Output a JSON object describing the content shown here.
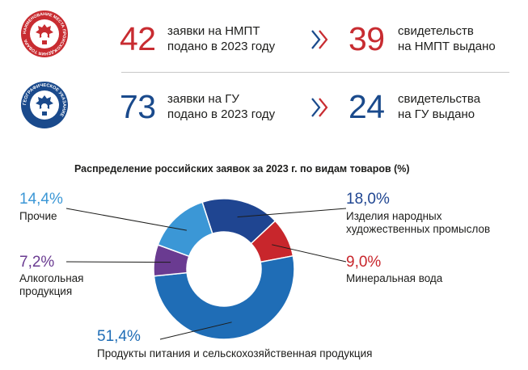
{
  "rows": [
    {
      "emblem": {
        "name": "nmpt-emblem",
        "ring_text": "НАИМЕНОВАНИЕ МЕСТА ПРОИСХОЖДЕНИЯ ТОВАРА",
        "color": "#c82c31"
      },
      "applications_value": "42",
      "applications_text": [
        "заявки на НМПТ",
        "подано в 2023 году"
      ],
      "certificates_value": "39",
      "certificates_text": [
        "свидетельств",
        "на НМПТ выдано"
      ],
      "value_color": "#c82c31"
    },
    {
      "emblem": {
        "name": "gu-emblem",
        "ring_text": "ГЕОГРАФИЧЕСКОЕ УКАЗАНИЕ",
        "color": "#1a4a8c"
      },
      "applications_value": "73",
      "applications_text": [
        "заявки на ГУ",
        "подано в 2023 году"
      ],
      "certificates_value": "24",
      "certificates_text": [
        "свидетельства",
        "на ГУ выдано"
      ],
      "value_color": "#1a4a8c"
    }
  ],
  "arrow_icon": "double-chevron-right-icon",
  "chart_data": {
    "type": "pie",
    "donut": true,
    "title": "Распределение российских заявок за 2023 г. по видам товаров (%)",
    "slices": [
      {
        "label": "Изделия народных художественных промыслов",
        "lines": [
          "Изделия народных",
          "художественных промыслов"
        ],
        "value": 18.0,
        "display": "18,0%",
        "color": "#1f4591"
      },
      {
        "label": "Минеральная вода",
        "lines": [
          "Минеральная вода"
        ],
        "value": 9.0,
        "display": "9,0%",
        "color": "#c8262c"
      },
      {
        "label": "Продукты питания и сельскохозяйственная продукция",
        "lines": [
          "Продукты питания и сельскохозяйственная продукция"
        ],
        "value": 51.4,
        "display": "51,4%",
        "color": "#1f6db6"
      },
      {
        "label": "Алкогольная продукция",
        "lines": [
          "Алкогольная",
          "продукция"
        ],
        "value": 7.2,
        "display": "7,2%",
        "color": "#6a3b91"
      },
      {
        "label": "Прочие",
        "lines": [
          "Прочие"
        ],
        "value": 14.4,
        "display": "14,4%",
        "color": "#3b97d6"
      }
    ]
  }
}
